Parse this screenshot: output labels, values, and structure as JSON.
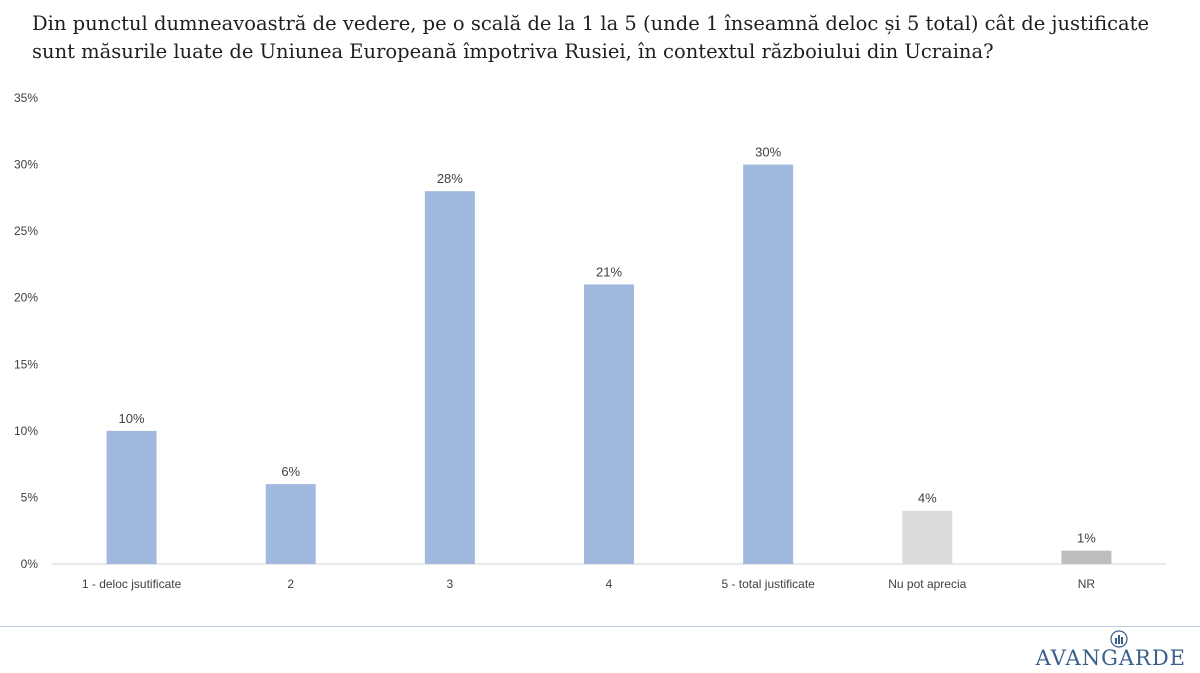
{
  "title_line1": "Din punctul dumneavoastră de vedere, pe o scală de la 1 la 5 (unde 1 înseamnă deloc și 5 total) cât de justificate",
  "title_line2": "sunt măsurile luate de Uniunea Europeană împotriva Rusiei, în contextul războiului din Ucraina?",
  "logo": {
    "text": "AVANGARDE",
    "color": "#3a5f8a"
  },
  "chart_data": {
    "type": "bar",
    "title": "Din punctul dumneavoastră de vedere, pe o scală de la 1 la 5 (unde 1 înseamnă deloc și 5 total) cât de justificate sunt măsurile luate de Uniunea Europeană împotriva Rusiei, în contextul războiului din Ucraina?",
    "categories": [
      "1 - deloc jsutificate",
      "2",
      "3",
      "4",
      "5 - total justificate",
      "Nu pot aprecia",
      "NR"
    ],
    "values": [
      10,
      6,
      28,
      21,
      30,
      4,
      1
    ],
    "data_labels": [
      "10%",
      "6%",
      "28%",
      "21%",
      "30%",
      "4%",
      "1%"
    ],
    "bar_colors": [
      "#a1b8df",
      "#a1b8df",
      "#a1b8df",
      "#a1b8df",
      "#a1b8df",
      "#dcdcdc",
      "#bdbdbd"
    ],
    "ylim": [
      0,
      35
    ],
    "yticks": [
      "0%",
      "5%",
      "10%",
      "15%",
      "20%",
      "25%",
      "30%",
      "35%"
    ],
    "ytick_values": [
      0,
      5,
      10,
      15,
      20,
      25,
      30,
      35
    ],
    "xlabel": "",
    "ylabel": "",
    "grid": false,
    "legend": "none"
  }
}
